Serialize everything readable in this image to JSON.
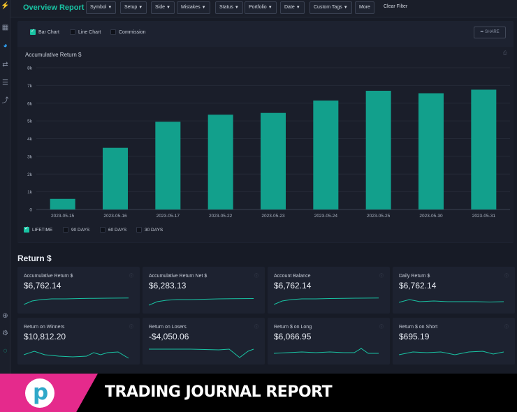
{
  "app": {
    "page_title": "Overview Report"
  },
  "filters": [
    "Symbol",
    "Setup",
    "Side",
    "Mistakes",
    "Status",
    "Portfolio",
    "Date",
    "Custom Tags"
  ],
  "more_label": "More",
  "clear_filter_label": "Clear Filter",
  "chart_toggles": {
    "bar": "Bar Chart",
    "line": "Line Chart",
    "commission": "Commission",
    "share": "SHARE"
  },
  "chart_data": {
    "type": "bar",
    "title": "Accumulative Return $",
    "categories": [
      "2023-05-15",
      "2023-05-16",
      "2023-05-17",
      "2023-05-22",
      "2023-05-23",
      "2023-05-24",
      "2023-05-25",
      "2023-05-30",
      "2023-05-31"
    ],
    "values": [
      600,
      3480,
      4950,
      5350,
      5450,
      6150,
      6700,
      6560,
      6762
    ],
    "ylim": [
      0,
      8000
    ],
    "yticks": [
      "0",
      "1k",
      "2k",
      "3k",
      "4k",
      "5k",
      "6k",
      "7k",
      "8k"
    ],
    "grid": true,
    "bar_color": "#12a08c"
  },
  "ranges": [
    "LIFETIME",
    "90 DAYS",
    "60 DAYS",
    "30 DAYS"
  ],
  "return_section": {
    "title": "Return $",
    "cards": [
      {
        "label": "Accumulative Return $",
        "value": "$6,762.14"
      },
      {
        "label": "Accumulative Return Net $",
        "value": "$6,283.13"
      },
      {
        "label": "Account Balance",
        "value": "$6,762.14"
      },
      {
        "label": "Daily Return $",
        "value": "$6,762.14"
      },
      {
        "label": "Return on Winners",
        "value": "$10,812.20"
      },
      {
        "label": "Return on Losers",
        "value": "-$4,050.06"
      },
      {
        "label": "Return $ on Long",
        "value": "$6,066.95"
      },
      {
        "label": "Return $ on Short",
        "value": "$695.19"
      }
    ]
  },
  "banner": {
    "logo_letter": "p",
    "text": "TRADING JOURNAL REPORT"
  },
  "colors": {
    "accent": "#19c3a3",
    "bar": "#12a08c",
    "banner_pink": "#e52a8c"
  }
}
